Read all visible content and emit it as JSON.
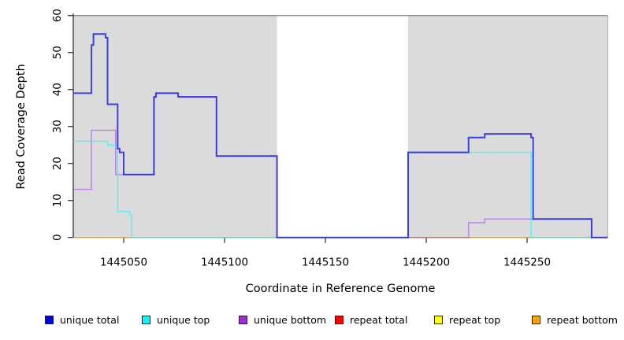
{
  "chart_data": {
    "type": "line",
    "subtype": "step",
    "title": "",
    "xlabel": "Coordinate in Reference Genome",
    "ylabel": "Read Coverage Depth",
    "xlim": [
      1445025,
      1445290
    ],
    "ylim": [
      0,
      60
    ],
    "x_ticks": [
      1445050,
      1445100,
      1445150,
      1445200,
      1445250
    ],
    "y_ticks": [
      0,
      10,
      20,
      30,
      40,
      50,
      60
    ],
    "grid": false,
    "legend_position": "bottom",
    "plot_bg": "#ffffff",
    "band_color": "#dbdbdb",
    "background_bands": [
      {
        "x0": 1445025,
        "x1": 1445126
      },
      {
        "x0": 1445191,
        "x1": 1445290
      }
    ],
    "series": [
      {
        "name": "repeat total",
        "color": "#ff0000",
        "opacity": 0.6,
        "width": 1.2,
        "steps": [
          [
            1445025,
            0
          ]
        ]
      },
      {
        "name": "repeat top",
        "color": "#ffff00",
        "opacity": 0.6,
        "width": 1.2,
        "steps": [
          [
            1445025,
            0
          ]
        ]
      },
      {
        "name": "repeat bottom",
        "color": "#ffa500",
        "opacity": 0.75,
        "width": 1.4,
        "steps": [
          [
            1445025,
            0
          ]
        ]
      },
      {
        "name": "unique bottom",
        "color": "#a020f0",
        "opacity": 0.5,
        "width": 1.4,
        "steps": [
          [
            1445025,
            13
          ],
          [
            1445034,
            29
          ],
          [
            1445046,
            17
          ],
          [
            1445065,
            38
          ],
          [
            1445066,
            39
          ],
          [
            1445077,
            38
          ],
          [
            1445096,
            22
          ],
          [
            1445126,
            0
          ],
          [
            1445221,
            4
          ],
          [
            1445229,
            5
          ],
          [
            1445282,
            0
          ]
        ]
      },
      {
        "name": "unique top",
        "color": "#00ffff",
        "opacity": 0.6,
        "width": 1.5,
        "steps": [
          [
            1445025,
            26
          ],
          [
            1445042,
            25
          ],
          [
            1445047,
            7
          ],
          [
            1445053,
            6
          ],
          [
            1445054,
            0
          ],
          [
            1445191,
            23
          ],
          [
            1445252,
            0
          ]
        ]
      },
      {
        "name": "unique total",
        "color": "#2525e0",
        "opacity": 0.85,
        "width": 2.0,
        "steps": [
          [
            1445025,
            39
          ],
          [
            1445034,
            52
          ],
          [
            1445035,
            55
          ],
          [
            1445041,
            54
          ],
          [
            1445042,
            36
          ],
          [
            1445047,
            24
          ],
          [
            1445048,
            23
          ],
          [
            1445050,
            17
          ],
          [
            1445065,
            38
          ],
          [
            1445066,
            39
          ],
          [
            1445077,
            38
          ],
          [
            1445096,
            22
          ],
          [
            1445126,
            0
          ],
          [
            1445191,
            23
          ],
          [
            1445221,
            27
          ],
          [
            1445229,
            28
          ],
          [
            1445252,
            27
          ],
          [
            1445253,
            5
          ],
          [
            1445282,
            0
          ]
        ]
      }
    ],
    "legend": [
      {
        "label": "unique total",
        "color": "#0000dd"
      },
      {
        "label": "unique top",
        "color": "#00ffff"
      },
      {
        "label": "unique bottom",
        "color": "#9932cc"
      },
      {
        "label": "repeat total",
        "color": "#ff0000"
      },
      {
        "label": "repeat top",
        "color": "#ffff00"
      },
      {
        "label": "repeat bottom",
        "color": "#ffa500"
      }
    ]
  }
}
